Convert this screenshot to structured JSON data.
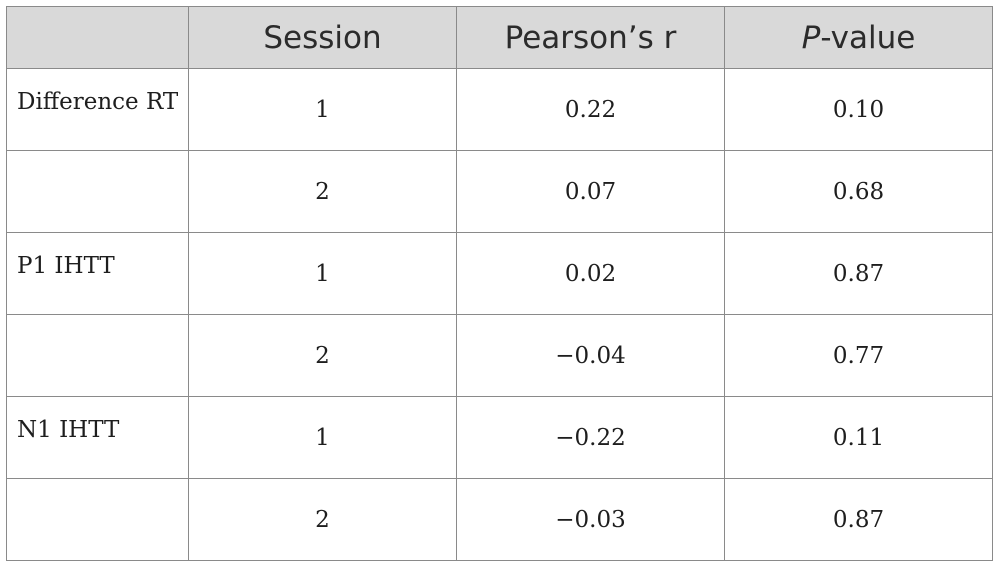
{
  "table": {
    "headers": {
      "blank": "",
      "session": "Session",
      "pearson": "Pearson’s r",
      "pvalue_prefix": "P",
      "pvalue_suffix": "-value"
    },
    "rows": [
      {
        "measure": "Difference RT",
        "session": "1",
        "r": "0.22",
        "p": "0.10"
      },
      {
        "measure": "",
        "session": "2",
        "r": "0.07",
        "p": "0.68"
      },
      {
        "measure": "P1 IHTT",
        "session": "1",
        "r": "0.02",
        "p": "0.87"
      },
      {
        "measure": "",
        "session": "2",
        "r": "−0.04",
        "p": "0.77"
      },
      {
        "measure": "N1 IHTT",
        "session": "1",
        "r": "−0.22",
        "p": "0.11"
      },
      {
        "measure": "",
        "session": "2",
        "r": "−0.03",
        "p": "0.87"
      }
    ]
  }
}
